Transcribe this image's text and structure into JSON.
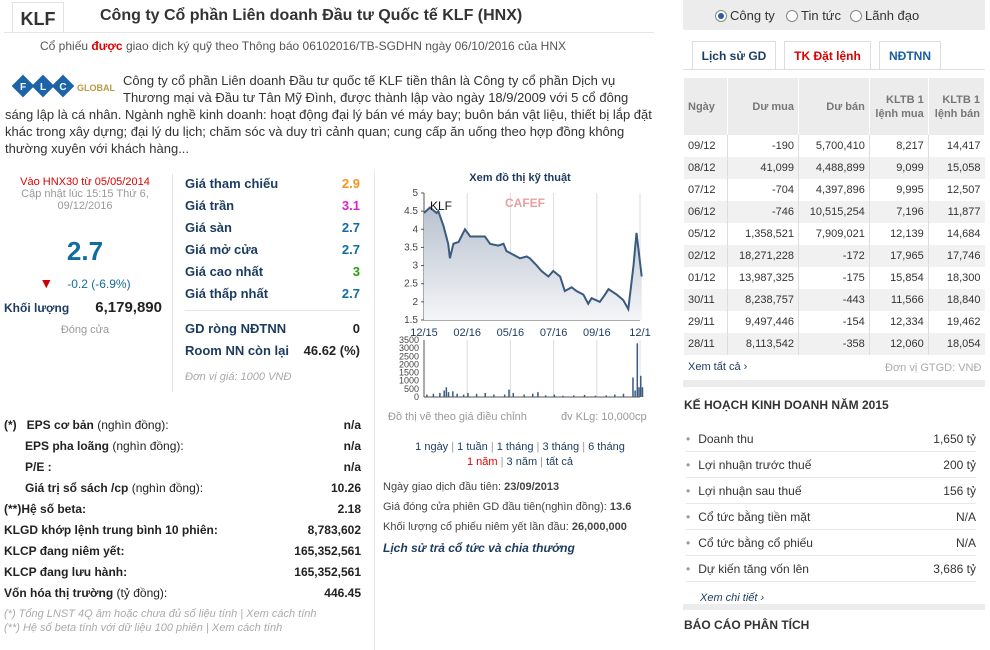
{
  "header": {
    "ticker": "KLF",
    "title": "Công ty Cổ phần Liên doanh Đầu tư Quốc tế KLF (HNX)",
    "notice_pre": "Cổ phiếu ",
    "notice_bold": "được",
    "notice_post": " giao dịch ký quỹ theo Thông báo 06102016/TB-SGDHN ngày 06/10/2016 của HNX"
  },
  "logo": {
    "letters": [
      "F",
      "L",
      "C"
    ],
    "word": "GLOBAL"
  },
  "description": "Công ty cổ phần Liên doanh Đầu tư quốc tế KLF tiền thân là Công ty cổ phần Dịch vụ Thương mại và Đầu tư Tân Mỹ Đình, được thành lập vào ngày 18/9/2009 với 5 cổ đông sáng lập là cá nhân. Ngành nghề kinh doanh: hoạt động đại lý bán vé máy bay; buôn bán vật liệu, thiết bị lắp đặt khác trong xây dựng; đại lý du lịch; chăm sóc và duy trì cảnh quan; cung cấp ăn uống theo hợp đồng không thường xuyên với khách hàng...",
  "quote": {
    "index_note": "Vào HNX30 từ 05/05/2014",
    "updated": "Cập nhật lúc 15:15 Thứ 6,",
    "updated_date": "09/12/2016",
    "price": "2.7",
    "change": "-0.2 (-6.9%)",
    "volume_label": "Khối lượng",
    "volume": "6,179,890",
    "status": "Đóng cửa"
  },
  "prices": [
    {
      "label": "Giá tham chiếu",
      "value": "2.9",
      "color": "#f7931e"
    },
    {
      "label": "Giá trần",
      "value": "3.1",
      "color": "#e020d0"
    },
    {
      "label": "Giá sàn",
      "value": "2.7",
      "color": "#136b9e"
    },
    {
      "label": "Giá mở cửa",
      "value": "2.7",
      "color": "#136b9e"
    },
    {
      "label": "Giá cao nhất",
      "value": "3",
      "color": "#2aa000"
    },
    {
      "label": "Giá thấp nhất",
      "value": "2.7",
      "color": "#136b9e"
    }
  ],
  "foreign": [
    {
      "label": "GD ròng NĐTNN",
      "value": "0"
    },
    {
      "label": "Room NN còn lại",
      "value": "46.62 (%)"
    }
  ],
  "unit_note": "Đơn vị giá: 1000 VNĐ",
  "stats": [
    {
      "prefix": "(*)",
      "label": "EPS cơ bản",
      "suffix": " (nghìn đồng):",
      "value": "n/a",
      "indent": false
    },
    {
      "prefix": "",
      "label": "EPS pha loãng",
      "suffix": " (nghìn đồng):",
      "value": "n/a",
      "indent": true
    },
    {
      "prefix": "",
      "label": "P/E :",
      "suffix": "",
      "value": "n/a",
      "indent": true
    },
    {
      "prefix": "",
      "label": "Giá trị sổ sách /cp",
      "suffix": " (nghìn đồng):",
      "value": "10.26",
      "indent": true
    },
    {
      "prefix": "(**)",
      "label": "Hệ số beta:",
      "suffix": "",
      "value": "2.18",
      "indent": false
    },
    {
      "prefix": "",
      "label": "KLGD khớp lệnh trung bình 10 phiên:",
      "suffix": "",
      "value": "8,783,602",
      "indent": false
    },
    {
      "prefix": "",
      "label": "KLCP đang niêm yết:",
      "suffix": "",
      "value": "165,352,561",
      "indent": false
    },
    {
      "prefix": "",
      "label": "KLCP đang lưu hành:",
      "suffix": "",
      "value": "165,352,561",
      "indent": false
    },
    {
      "prefix": "",
      "label": "Vốn hóa thị trường",
      "suffix": " (tỷ đồng):",
      "value": "446.45",
      "indent": false
    }
  ],
  "footnotes": [
    "(*) Tổng LNST 4Q âm hoặc chưa đủ số liệu tính | Xem cách tính",
    "(**) Hệ số beta tính với dữ liệu 100 phiên | Xem cách tính"
  ],
  "chart_data": {
    "type": "line",
    "title": "Xem đồ thị kỹ thuật",
    "symbol": "KLF",
    "watermark": "CAFEF",
    "x_ticks": [
      "12/15",
      "02/16",
      "05/16",
      "07/16",
      "09/16",
      "12/1"
    ],
    "y_ticks": [
      "5",
      "4.5",
      "4",
      "3.5",
      "3",
      "2.5",
      "2",
      "1.5"
    ],
    "ylim": [
      1.5,
      5
    ],
    "price": [
      [
        0,
        4.45
      ],
      [
        0.14,
        4.6
      ],
      [
        0.29,
        4.45
      ],
      [
        0.33,
        4.5
      ],
      [
        0.45,
        4.1
      ],
      [
        0.56,
        3.6
      ],
      [
        0.6,
        3.2
      ],
      [
        0.68,
        3.6
      ],
      [
        0.8,
        3.65
      ],
      [
        0.95,
        4.0
      ],
      [
        1.07,
        3.8
      ],
      [
        1.3,
        3.8
      ],
      [
        1.41,
        3.8
      ],
      [
        1.53,
        3.6
      ],
      [
        1.72,
        3.55
      ],
      [
        1.84,
        3.6
      ],
      [
        1.91,
        3.4
      ],
      [
        2.07,
        3.3
      ],
      [
        2.22,
        3.2
      ],
      [
        2.38,
        3.25
      ],
      [
        2.45,
        3.2
      ],
      [
        2.61,
        3.0
      ],
      [
        2.72,
        2.85
      ],
      [
        2.88,
        2.7
      ],
      [
        2.99,
        2.85
      ],
      [
        3.15,
        2.7
      ],
      [
        3.26,
        2.3
      ],
      [
        3.42,
        2.4
      ],
      [
        3.53,
        2.3
      ],
      [
        3.69,
        2.2
      ],
      [
        3.8,
        1.95
      ],
      [
        3.88,
        2.1
      ],
      [
        4.07,
        2.0
      ],
      [
        4.19,
        2.2
      ],
      [
        4.27,
        2.35
      ],
      [
        4.46,
        2.2
      ],
      [
        4.61,
        2.05
      ],
      [
        4.73,
        1.8
      ],
      [
        4.85,
        3.0
      ],
      [
        4.92,
        3.9
      ],
      [
        5.04,
        2.7
      ]
    ],
    "volume_ticks": [
      "3500",
      "3000",
      "2500",
      "2000",
      "1500",
      "1000",
      "500",
      "0"
    ],
    "volume_ylim": [
      0,
      3500
    ],
    "volume": [
      [
        0.05,
        150
      ],
      [
        0.2,
        200
      ],
      [
        0.35,
        250
      ],
      [
        0.45,
        400
      ],
      [
        0.5,
        600
      ],
      [
        0.55,
        300
      ],
      [
        0.65,
        350
      ],
      [
        0.75,
        200
      ],
      [
        0.9,
        150
      ],
      [
        1.0,
        250
      ],
      [
        1.2,
        200
      ],
      [
        1.4,
        250
      ],
      [
        1.6,
        150
      ],
      [
        1.85,
        150
      ],
      [
        1.95,
        450
      ],
      [
        2.05,
        250
      ],
      [
        2.3,
        150
      ],
      [
        2.5,
        200
      ],
      [
        2.62,
        300
      ],
      [
        2.8,
        100
      ],
      [
        3.0,
        150
      ],
      [
        3.2,
        80
      ],
      [
        3.45,
        100
      ],
      [
        3.7,
        130
      ],
      [
        3.95,
        80
      ],
      [
        4.2,
        100
      ],
      [
        4.4,
        150
      ],
      [
        4.6,
        200
      ],
      [
        4.82,
        1200
      ],
      [
        4.87,
        400
      ],
      [
        4.92,
        3300
      ],
      [
        4.96,
        600
      ],
      [
        5.0,
        1300
      ],
      [
        5.04,
        600
      ]
    ],
    "caption_left": "Đồ thị vẽ theo giá điều chỉnh",
    "caption_right": "đv KLg: 10,000cp"
  },
  "ranges": [
    "1 ngày",
    "1 tuần",
    "1 tháng",
    "3 tháng",
    "6 tháng",
    "1 năm",
    "3 năm",
    "tất cả"
  ],
  "listing": [
    {
      "label": "Ngày giao dịch đầu tiên: ",
      "value": "23/09/2013"
    },
    {
      "label": "Giá đóng cửa phiên GD đầu tiên(nghìn đồng): ",
      "value": "13.6"
    },
    {
      "label": "Khối lượng cổ phiếu niêm yết lần đầu: ",
      "value": "26,000,000"
    }
  ],
  "dividend_link": "Lịch sử trả cổ tức và chia thưởng",
  "radios": [
    "Công ty",
    "Tin tức",
    "Lãnh đạo"
  ],
  "tabs": [
    "Lịch sử GD",
    "TK Đặt lệnh",
    "NĐTNN"
  ],
  "table": {
    "headers": [
      "Ngày",
      "Dư mua",
      "Dư bán",
      "KLTB 1 lệnh mua",
      "KLTB 1 lệnh bán"
    ],
    "rows": [
      [
        "09/12",
        "-190",
        "5,700,410",
        "8,217",
        "14,417"
      ],
      [
        "08/12",
        "41,099",
        "4,488,899",
        "9,099",
        "15,058"
      ],
      [
        "07/12",
        "-704",
        "4,397,896",
        "9,995",
        "12,507"
      ],
      [
        "06/12",
        "-746",
        "10,515,254",
        "7,196",
        "11,877"
      ],
      [
        "05/12",
        "1,358,521",
        "7,909,021",
        "12,139",
        "14,684"
      ],
      [
        "02/12",
        "18,271,228",
        "-172",
        "17,965",
        "17,746"
      ],
      [
        "01/12",
        "13,987,325",
        "-175",
        "15,854",
        "18,300"
      ],
      [
        "30/11",
        "8,238,757",
        "-443",
        "11,566",
        "18,840"
      ],
      [
        "29/11",
        "9,497,446",
        "-154",
        "12,334",
        "19,462"
      ],
      [
        "28/11",
        "8,113,542",
        "-358",
        "12,060",
        "18,054"
      ]
    ],
    "see_all": "Xem tất cả",
    "unit": "Đơn vị GTGD: VNĐ"
  },
  "plan": {
    "title": "KẾ HOẠCH KINH DOANH NĂM 2015",
    "rows": [
      [
        "Doanh thu",
        "1,650 tỷ"
      ],
      [
        "Lợi nhuận trước thuế",
        "200 tỷ"
      ],
      [
        "Lợi nhuận sau thuế",
        "156 tỷ"
      ],
      [
        "Cổ tức bằng tiền mặt",
        "N/A"
      ],
      [
        "Cổ tức bằng cổ phiếu",
        "N/A"
      ],
      [
        "Dự kiến tăng vốn lên",
        "3,686 tỷ"
      ]
    ],
    "more": "Xem chi tiết"
  },
  "analysis_title": "BÁO CÁO PHÂN TÍCH"
}
